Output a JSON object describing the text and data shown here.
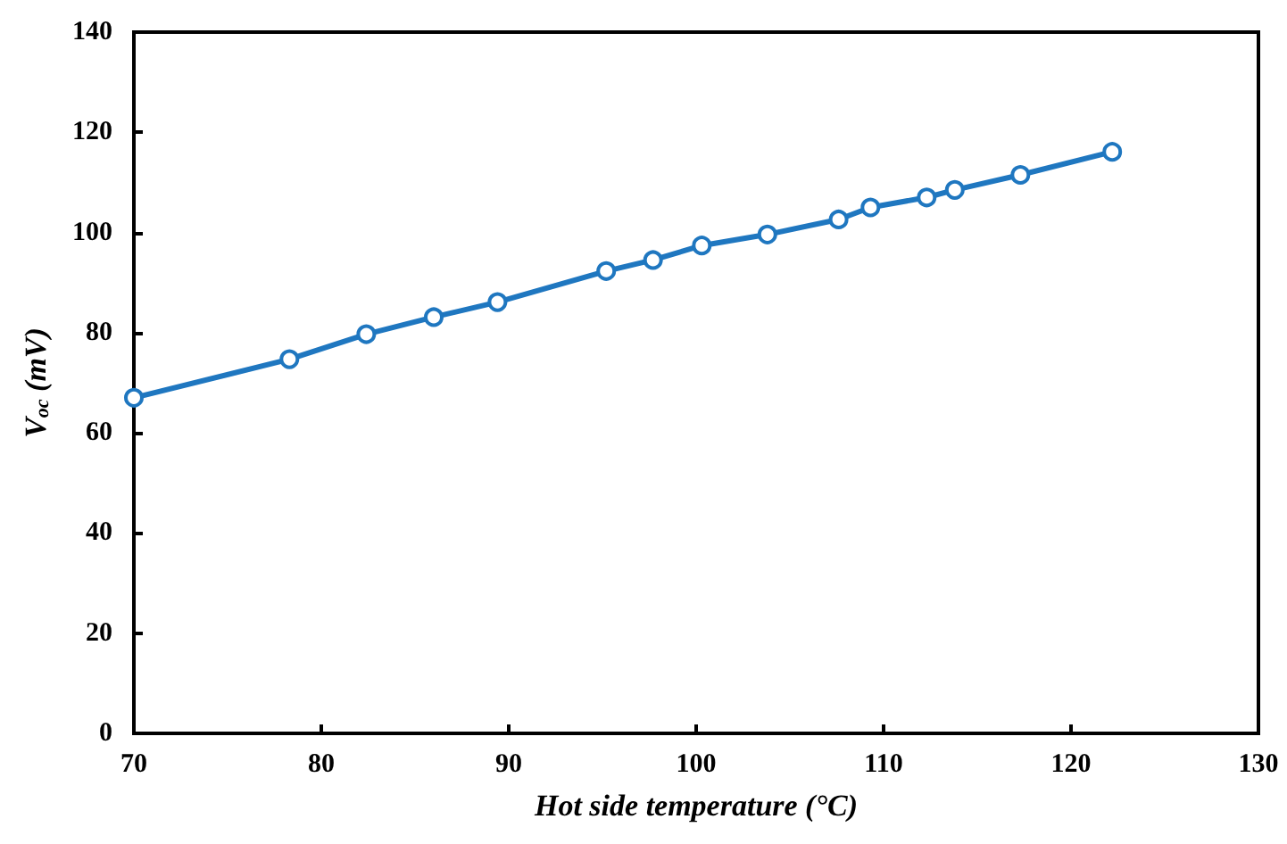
{
  "chart_data": {
    "type": "line",
    "xlabel": "Hot side temperature (°C)",
    "ylabel": "V$_{oc}$ (mV)",
    "x": [
      70,
      78.3,
      82.4,
      86,
      89.4,
      95.2,
      97.7,
      100.3,
      103.8,
      107.6,
      109.3,
      112.3,
      113.8,
      117.3,
      122.2
    ],
    "series": [
      {
        "color": "#1f77c0",
        "values": [
          67,
          74.7,
          79.7,
          83.1,
          86.1,
          92.3,
          94.5,
          97.4,
          99.6,
          102.6,
          105,
          107,
          108.5,
          111.5,
          116.1
        ]
      }
    ],
    "xlim": [
      70,
      130
    ],
    "xticks": [
      70,
      80,
      90,
      100,
      110,
      120,
      130
    ],
    "ylim": [
      0,
      140
    ],
    "yticks": [
      0,
      20,
      40,
      60,
      80,
      100,
      120,
      140
    ],
    "grid": false,
    "marker": "circle",
    "line_style": "solid"
  }
}
